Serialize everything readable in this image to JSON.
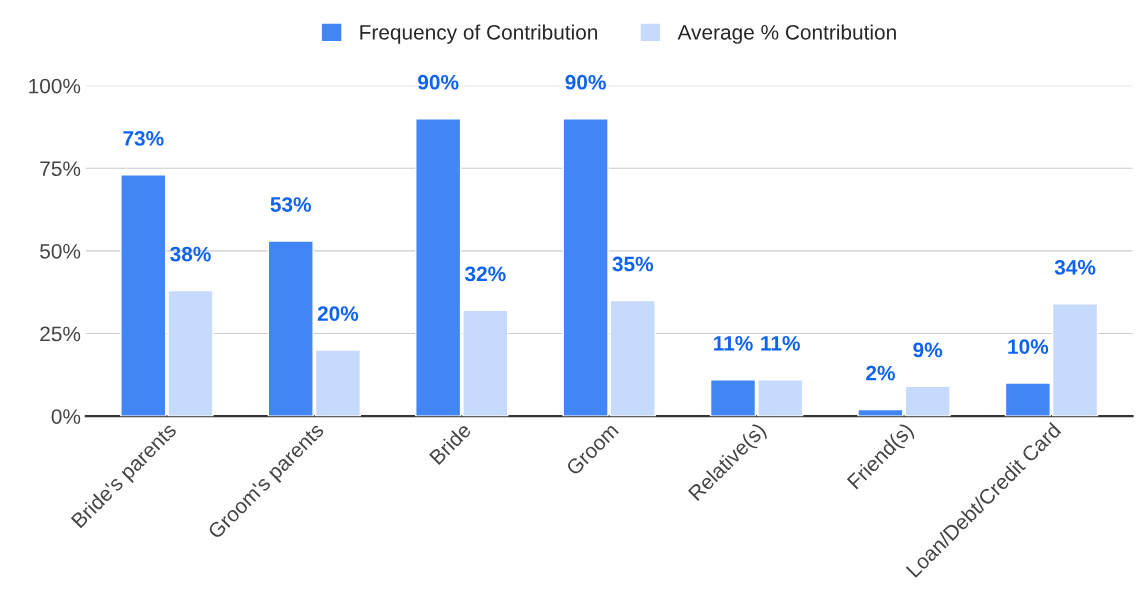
{
  "chart_data": {
    "type": "bar",
    "categories": [
      "Bride's parents",
      "Groom's parents",
      "Bride",
      "Groom",
      "Relative(s)",
      "Friend(s)",
      "Loan/Debt/Credit Card"
    ],
    "series": [
      {
        "name": "Frequency of Contribution",
        "color": "#4285f4",
        "values": [
          73,
          53,
          90,
          90,
          11,
          2,
          10
        ],
        "value_labels": [
          "73%",
          "53%",
          "90%",
          "90%",
          "11%",
          "2%",
          "10%"
        ]
      },
      {
        "name": "Average % Contribution",
        "color": "#c6dafc",
        "values": [
          38,
          20,
          32,
          35,
          11,
          9,
          34
        ],
        "value_labels": [
          "38%",
          "20%",
          "32%",
          "35%",
          "11%",
          "9%",
          "34%"
        ]
      }
    ],
    "ylim": [
      0,
      100
    ],
    "yticks": [
      {
        "value": 0,
        "label": "0%"
      },
      {
        "value": 25,
        "label": "25%"
      },
      {
        "value": 50,
        "label": "50%"
      },
      {
        "value": 75,
        "label": "75%"
      },
      {
        "value": 100,
        "label": "100%"
      }
    ],
    "grid": "y",
    "legend": "top"
  }
}
